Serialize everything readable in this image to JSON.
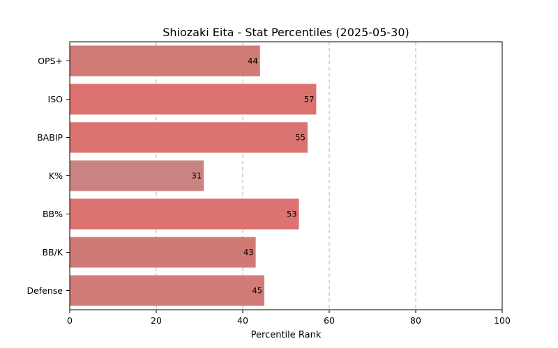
{
  "chart_data": {
    "type": "bar",
    "orientation": "horizontal",
    "title": "Shiozaki Eita - Stat Percentiles (2025-05-30)",
    "xlabel": "Percentile Rank",
    "ylabel": "",
    "xlim": [
      0,
      100
    ],
    "xticks": [
      0,
      20,
      40,
      60,
      80,
      100
    ],
    "grid": "x-dashed",
    "categories": [
      "OPS+",
      "ISO",
      "BABIP",
      "K%",
      "BB%",
      "BB/K",
      "Defense"
    ],
    "values": [
      44,
      57,
      55,
      31,
      53,
      43,
      45
    ],
    "colors": [
      "#d17b77",
      "#dc7270",
      "#db7370",
      "#c98481",
      "#dc7370",
      "#d07a76",
      "#d27c78"
    ]
  }
}
